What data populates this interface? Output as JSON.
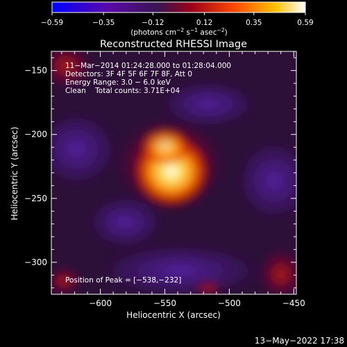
{
  "colorbar": {
    "ticks": [
      "−0.59",
      "−0.35",
      "−0.12",
      "0.12",
      "0.35",
      "0.59"
    ],
    "tick_values": [
      -0.59,
      -0.35,
      -0.12,
      0.12,
      0.35,
      0.59
    ],
    "range": [
      -0.59,
      0.59
    ],
    "units_main": "(photons cm",
    "units_sup1": "−2",
    "units_mid": " s",
    "units_sup2": "−1",
    "units_mid2": " asec",
    "units_sup3": "−2",
    "units_end": ")",
    "colors": [
      "#0000ff",
      "#5a0aa8",
      "#4a1a6a",
      "#9c0018",
      "#ff4800",
      "#ffc000",
      "#ffffff"
    ]
  },
  "chart_data": {
    "type": "heatmap",
    "title": "Reconstructed RHESSI Image",
    "xlabel": "Heliocentric X (arcsec)",
    "ylabel": "Heliocentric Y (arcsec)",
    "xlim": [
      -638,
      -448
    ],
    "ylim": [
      -325,
      -135
    ],
    "xticks": [
      -600,
      -550,
      -500,
      -450
    ],
    "xtick_labels": [
      "−600",
      "−550",
      "−500",
      "−450"
    ],
    "yticks": [
      -150,
      -200,
      -250,
      -300
    ],
    "ytick_labels": [
      "−150",
      "−200",
      "−250",
      "−300"
    ],
    "peak": {
      "x": -538,
      "y": -232,
      "value": 0.59
    },
    "colormap": "blue-purple-red-yellow-white",
    "annotations": {
      "time": "11−Mar−2014 01:24:28.000 to 01:28:04.000",
      "detectors": "Detectors: 3F 4F 5F 6F 7F 8F, Att 0",
      "energy": "Energy Range: 3.0 − 6.0 keV",
      "clean": "Clean    Total counts: 3.71E+04",
      "peak_position": "Position of Peak = [−538,−232]"
    }
  },
  "footer": {
    "date": "13−May−2022 17:38"
  }
}
